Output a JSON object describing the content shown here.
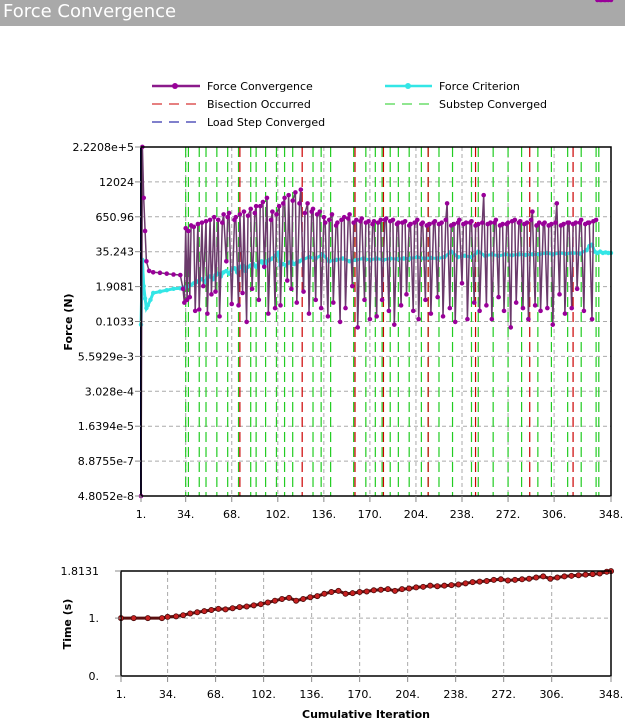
{
  "window": {
    "title": "Force Convergence"
  },
  "chart_data": [
    {
      "type": "line",
      "title": "Force Convergence",
      "xlabel": "",
      "ylabel": "Force (N)",
      "yscale": "log",
      "xlim": [
        1,
        348
      ],
      "ylim": [
        4.8052e-08,
        222080.0
      ],
      "x_ticks": [
        "1.",
        "34.",
        "68.",
        "102.",
        "136.",
        "170.",
        "204.",
        "238.",
        "272.",
        "306.",
        "348."
      ],
      "x_tick_values": [
        1,
        34,
        68,
        102,
        136,
        170,
        204,
        238,
        272,
        306,
        348
      ],
      "y_ticks": [
        "2.2208e+5",
        "12024",
        "650.96",
        "35.243",
        "1.9081",
        "0.1033",
        "5.5929e-3",
        "3.028e-4",
        "1.6394e-5",
        "8.8755e-7",
        "4.8052e-8"
      ],
      "grid": true,
      "legend": {
        "placement": "top",
        "entries": [
          {
            "label": "Force Convergence",
            "color": "#990099",
            "style": "line-marker"
          },
          {
            "label": "Force Criterion",
            "color": "#33e6e6",
            "style": "line-marker"
          },
          {
            "label": "Bisection Occurred",
            "color": "#cc0000",
            "style": "dashed"
          },
          {
            "label": "Substep Converged",
            "color": "#22cc22",
            "style": "dashed"
          },
          {
            "label": "Load Step Converged",
            "color": "#000099",
            "style": "dashed"
          }
        ]
      },
      "series": [
        {
          "name": "Force Convergence",
          "color": "#990099",
          "x": [
            1,
            2,
            3,
            4,
            5,
            7,
            10,
            15,
            20,
            25,
            30,
            32,
            33,
            34,
            35,
            36,
            37,
            38,
            40,
            41,
            43,
            44,
            46,
            47,
            49,
            50,
            52,
            53,
            55,
            56,
            58,
            59,
            61,
            62,
            64,
            65,
            66,
            68,
            70,
            71,
            73,
            74,
            76,
            77,
            79,
            80,
            82,
            83,
            85,
            86,
            88,
            89,
            91,
            92,
            94,
            95,
            97,
            98,
            100,
            101,
            103,
            104,
            106,
            107,
            109,
            110,
            112,
            113,
            115,
            116,
            118,
            119,
            121,
            122,
            124,
            125,
            127,
            128,
            130,
            131,
            133,
            134,
            136,
            137,
            139,
            140,
            142,
            143,
            145,
            146,
            148,
            149,
            151,
            152,
            154,
            155,
            157,
            158,
            160,
            161,
            163,
            164,
            166,
            167,
            169,
            170,
            172,
            173,
            175,
            176,
            178,
            179,
            181,
            182,
            184,
            185,
            187,
            188,
            190,
            191,
            193,
            194,
            196,
            197,
            199,
            200,
            202,
            203,
            205,
            206,
            208,
            209,
            211,
            212,
            214,
            215,
            217,
            218,
            220,
            221,
            223,
            224,
            226,
            227,
            229,
            230,
            232,
            233,
            235,
            236,
            238,
            239,
            241,
            242,
            244,
            245,
            247,
            248,
            250,
            251,
            253,
            254,
            256,
            257,
            259,
            260,
            262,
            263,
            265,
            266,
            268,
            269,
            271,
            272,
            274,
            275,
            277,
            278,
            280,
            281,
            283,
            284,
            286,
            287,
            289,
            290,
            292,
            293,
            295,
            296,
            298,
            299,
            301,
            302,
            304,
            305,
            307,
            308,
            310,
            311,
            313,
            314,
            316,
            317,
            319,
            320,
            322,
            323,
            325,
            326,
            328,
            329,
            331,
            332,
            334,
            335,
            337,
            338,
            340,
            341,
            343,
            344,
            346,
            348
          ],
          "log10_y": [
            -7.32,
            5.35,
            3.5,
            2.3,
            1.2,
            0.85,
            0.8,
            0.78,
            0.75,
            0.72,
            0.7,
            0.2,
            -0.3,
            2.4,
            -0.2,
            2.3,
            -0.1,
            2.5,
            2.45,
            -0.6,
            2.55,
            -0.55,
            2.6,
            0.3,
            2.65,
            -0.7,
            2.7,
            0.0,
            2.8,
            0.1,
            2.7,
            -0.8,
            2.6,
            2.9,
            1.2,
            2.8,
            2.95,
            -0.35,
            2.7,
            2.8,
            -0.4,
            2.9,
            0.05,
            3.0,
            -1.0,
            2.85,
            3.1,
            0.2,
            2.95,
            3.2,
            -0.2,
            3.2,
            3.35,
            1.0,
            3.5,
            -0.7,
            2.7,
            3.0,
            -0.5,
            2.9,
            3.2,
            -0.4,
            3.3,
            3.5,
            0.5,
            3.6,
            0.2,
            3.4,
            3.7,
            -0.3,
            3.3,
            3.8,
            0.1,
            2.95,
            3.3,
            -0.7,
            3.0,
            3.1,
            -0.2,
            2.9,
            3.0,
            -0.5,
            2.8,
            2.6,
            -0.8,
            2.7,
            2.9,
            -0.3,
            2.5,
            2.6,
            -1.0,
            2.7,
            2.8,
            -0.5,
            2.75,
            2.9,
            0.3,
            2.6,
            2.7,
            -1.2,
            2.65,
            2.75,
            -0.2,
            2.6,
            2.65,
            -0.9,
            2.55,
            2.65,
            -0.8,
            2.6,
            2.7,
            -0.2,
            2.7,
            2.75,
            -0.6,
            2.65,
            2.7,
            -1.1,
            2.55,
            2.6,
            -0.4,
            2.6,
            2.65,
            0.0,
            2.5,
            2.55,
            -0.6,
            2.6,
            2.7,
            -0.9,
            2.55,
            2.6,
            -0.2,
            2.5,
            2.55,
            -0.7,
            2.6,
            2.65,
            -0.1,
            2.55,
            2.6,
            -0.8,
            2.7,
            3.3,
            -0.5,
            2.5,
            2.55,
            -1.0,
            2.6,
            2.7,
            0.4,
            2.55,
            2.6,
            -0.9,
            2.6,
            2.65,
            -0.3,
            2.5,
            2.55,
            -0.6,
            2.6,
            3.6,
            -0.4,
            2.55,
            2.6,
            -0.9,
            2.6,
            2.7,
            -0.1,
            2.5,
            2.55,
            -0.6,
            2.55,
            2.6,
            -1.2,
            2.65,
            2.7,
            -0.3,
            2.6,
            2.65,
            -0.5,
            2.55,
            2.6,
            -0.9,
            2.7,
            3.0,
            -0.4,
            2.5,
            2.6,
            -0.6,
            2.55,
            2.6,
            -0.5,
            2.5,
            2.55,
            -1.1,
            2.6,
            3.3,
            0.0,
            2.5,
            2.55,
            -0.7,
            2.6,
            2.6,
            -0.5,
            2.55,
            2.6,
            0.2,
            2.6,
            2.7,
            -0.6,
            2.55,
            2.6,
            2.6,
            -0.9,
            2.65,
            2.7
          ],
          "markers": true
        },
        {
          "name": "Force Criterion",
          "color": "#33e6e6",
          "x": [
            1,
            2,
            3,
            4,
            5,
            6,
            8,
            10,
            15,
            20,
            25,
            30,
            33,
            34,
            36,
            38,
            40,
            42,
            44,
            46,
            48,
            50,
            52,
            54,
            56,
            58,
            60,
            62,
            64,
            66,
            68,
            70,
            72,
            74,
            76,
            78,
            80,
            82,
            84,
            86,
            88,
            90,
            92,
            94,
            96,
            98,
            100,
            102,
            104,
            106,
            108,
            110,
            112,
            114,
            116,
            118,
            120,
            125,
            130,
            135,
            140,
            145,
            150,
            155,
            160,
            165,
            170,
            175,
            180,
            185,
            190,
            195,
            200,
            205,
            210,
            215,
            220,
            225,
            230,
            235,
            240,
            245,
            250,
            255,
            260,
            265,
            270,
            275,
            280,
            285,
            290,
            295,
            300,
            305,
            310,
            315,
            320,
            325,
            330,
            332,
            334,
            336,
            338,
            340,
            342,
            344,
            346,
            348
          ],
          "log10_y": [
            -1.1,
            1.25,
            0.3,
            -0.15,
            -0.5,
            -0.4,
            -0.2,
            0.05,
            0.1,
            0.15,
            0.2,
            0.22,
            0.25,
            0.25,
            0.3,
            0.35,
            0.4,
            0.45,
            0.5,
            0.55,
            0.45,
            0.6,
            0.65,
            0.55,
            0.7,
            0.75,
            0.65,
            0.8,
            0.85,
            0.75,
            0.9,
            0.95,
            0.8,
            1.0,
            1.05,
            0.85,
            1.0,
            1.05,
            1.1,
            1.0,
            1.15,
            1.2,
            1.0,
            1.2,
            1.25,
            1.3,
            1.4,
            1.5,
            1.05,
            1.1,
            1.05,
            1.15,
            1.2,
            1.1,
            1.15,
            1.2,
            1.25,
            1.35,
            1.3,
            1.45,
            1.2,
            1.25,
            1.3,
            1.2,
            1.25,
            1.3,
            1.25,
            1.3,
            1.25,
            1.3,
            1.28,
            1.3,
            1.3,
            1.35,
            1.3,
            1.32,
            1.3,
            1.35,
            1.55,
            1.35,
            1.4,
            1.35,
            1.55,
            1.4,
            1.45,
            1.4,
            1.45,
            1.42,
            1.45,
            1.43,
            1.45,
            1.45,
            1.5,
            1.45,
            1.5,
            1.47,
            1.5,
            1.48,
            1.6,
            1.75,
            1.8,
            1.55,
            1.5,
            1.55,
            1.5,
            1.52,
            1.5,
            1.5
          ],
          "markers": true
        }
      ],
      "vertical_lines": {
        "substep_converged_x": [
          34,
          36,
          44,
          49,
          57,
          65,
          73,
          82,
          86,
          93,
          101,
          107,
          113,
          128,
          134,
          141,
          158,
          167,
          174,
          179,
          185,
          191,
          199,
          208,
          213,
          221,
          231,
          245,
          250,
          261,
          272,
          282,
          294,
          304,
          316,
          326,
          337,
          339
        ],
        "bisection_occurred_x": [
          74,
          120,
          159,
          180,
          213,
          248,
          288,
          320
        ],
        "load_step_converged_x": [
          1
        ]
      }
    },
    {
      "type": "line",
      "title": "",
      "xlabel": "Cumulative Iteration",
      "ylabel": "Time (s)",
      "xlim": [
        1,
        348
      ],
      "ylim": [
        0,
        1.8131
      ],
      "x_ticks": [
        "1.",
        "34.",
        "68.",
        "102.",
        "136.",
        "170.",
        "204.",
        "238.",
        "272.",
        "306.",
        "348."
      ],
      "x_tick_values": [
        1,
        34,
        68,
        102,
        136,
        170,
        204,
        238,
        272,
        306,
        348
      ],
      "y_ticks": [
        "1.8131",
        "1.",
        "0."
      ],
      "y_tick_values": [
        1.8131,
        1,
        0
      ],
      "grid": true,
      "series": [
        {
          "name": "Time",
          "color": "#b22222",
          "x": [
            1,
            10,
            20,
            30,
            34,
            40,
            45,
            50,
            55,
            60,
            65,
            70,
            75,
            80,
            85,
            90,
            95,
            100,
            105,
            110,
            115,
            120,
            125,
            130,
            135,
            140,
            145,
            150,
            155,
            160,
            165,
            170,
            175,
            180,
            185,
            190,
            195,
            200,
            205,
            210,
            215,
            220,
            225,
            230,
            235,
            240,
            245,
            250,
            255,
            260,
            265,
            270,
            275,
            280,
            285,
            290,
            295,
            300,
            305,
            310,
            315,
            320,
            325,
            330,
            335,
            340,
            345,
            348
          ],
          "y": [
            1.0,
            1.0,
            1.0,
            1.0,
            1.02,
            1.03,
            1.05,
            1.08,
            1.1,
            1.12,
            1.14,
            1.16,
            1.15,
            1.17,
            1.19,
            1.2,
            1.22,
            1.24,
            1.27,
            1.3,
            1.33,
            1.35,
            1.3,
            1.33,
            1.36,
            1.38,
            1.42,
            1.45,
            1.47,
            1.42,
            1.43,
            1.45,
            1.46,
            1.48,
            1.49,
            1.5,
            1.47,
            1.5,
            1.51,
            1.53,
            1.54,
            1.56,
            1.55,
            1.56,
            1.57,
            1.58,
            1.6,
            1.62,
            1.63,
            1.64,
            1.66,
            1.67,
            1.65,
            1.66,
            1.67,
            1.68,
            1.7,
            1.72,
            1.68,
            1.7,
            1.72,
            1.73,
            1.74,
            1.75,
            1.76,
            1.77,
            1.8,
            1.81
          ],
          "markers": true
        }
      ]
    }
  ]
}
